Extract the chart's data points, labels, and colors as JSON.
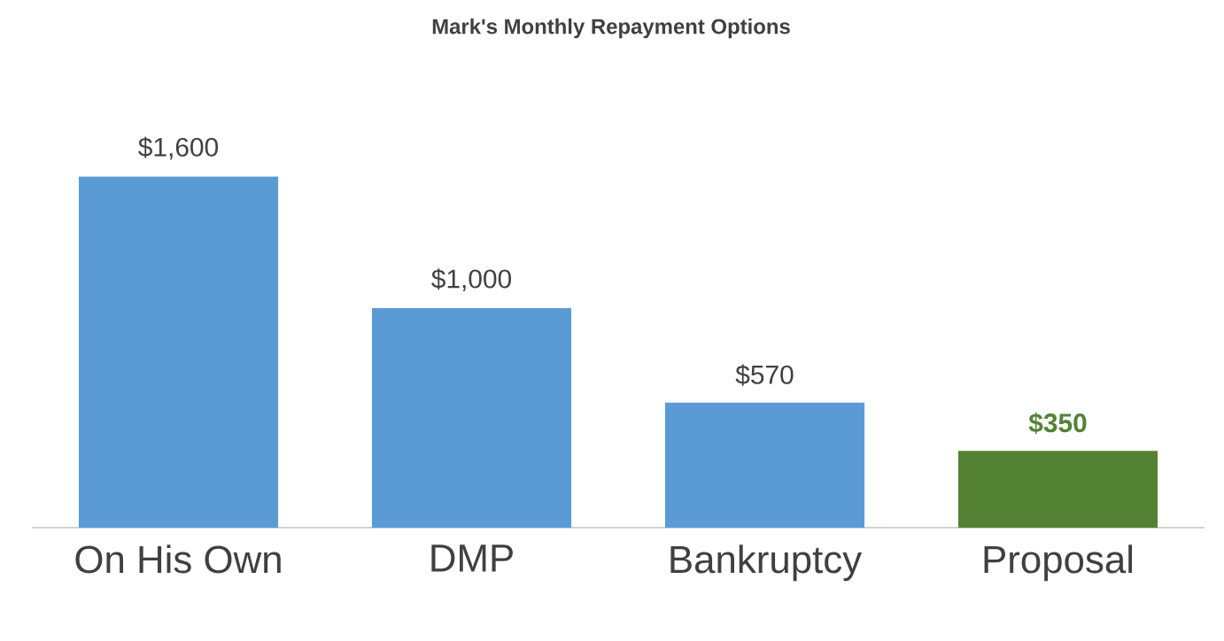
{
  "chart_data": {
    "type": "bar",
    "title": "Mark's Monthly Repayment Options",
    "categories": [
      "On His Own",
      "DMP",
      "Bankruptcy",
      "Proposal"
    ],
    "values": [
      1600,
      1000,
      570,
      350
    ],
    "colors": [
      "#5b9bd5",
      "#5b9bd5",
      "#5b9bd5",
      "#548235"
    ],
    "value_labels": [
      "$1,600",
      "$1,000",
      "$570",
      "**$350**"
    ]
  }
}
